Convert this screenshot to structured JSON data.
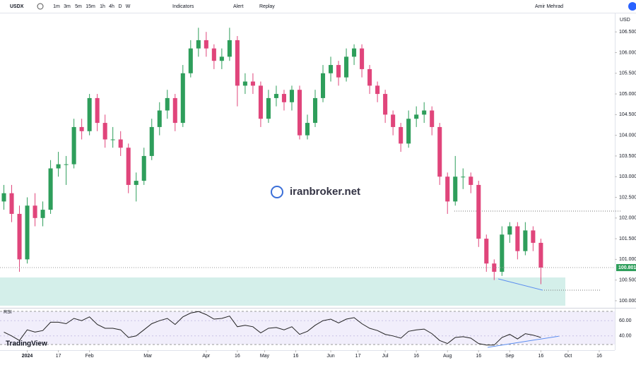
{
  "toolbar": {
    "symbol": "USDX",
    "intervals": [
      "1m",
      "3m",
      "5m",
      "15m",
      "1h",
      "4h",
      "D",
      "W"
    ],
    "indicators": "Indicators",
    "alert": "Alert",
    "replay": "Replay",
    "user": "Amir Mehrad"
  },
  "watermark": "iranbroker.net",
  "brand": "TradingView",
  "chart_data": [
    {
      "type": "candlestick",
      "currency": "USD",
      "up_color": "#2e9e5b",
      "down_color": "#e0457b",
      "last_price": 100.801,
      "xlim": [
        -0.5,
        78.5
      ],
      "xticks": [
        {
          "value": 3,
          "label": "2024"
        },
        {
          "value": 7,
          "label": "17"
        },
        {
          "value": 11,
          "label": "Feb"
        },
        {
          "value": 18.5,
          "label": "Mar"
        },
        {
          "value": 26,
          "label": "Apr"
        },
        {
          "value": 30,
          "label": "16"
        },
        {
          "value": 33.5,
          "label": "May"
        },
        {
          "value": 37.5,
          "label": "16"
        },
        {
          "value": 42,
          "label": "Jun"
        },
        {
          "value": 45.5,
          "label": "17"
        },
        {
          "value": 49,
          "label": "Jul"
        },
        {
          "value": 53,
          "label": "16"
        },
        {
          "value": 57,
          "label": "Aug"
        },
        {
          "value": 61,
          "label": "16"
        },
        {
          "value": 65,
          "label": "Sep"
        },
        {
          "value": 69,
          "label": "16"
        },
        {
          "value": 72.5,
          "label": "Oct"
        },
        {
          "value": 76.5,
          "label": "16"
        }
      ],
      "ylim": [
        99.88,
        106.93
      ],
      "yticks": [
        {
          "value": 100,
          "label": "100.000"
        },
        {
          "value": 100.5,
          "label": "100.500"
        },
        {
          "value": 101,
          "label": "101.000"
        },
        {
          "value": 101.5,
          "label": "101.500"
        },
        {
          "value": 102,
          "label": "102.000"
        },
        {
          "value": 102.5,
          "label": "102.500"
        },
        {
          "value": 103,
          "label": "103.000"
        },
        {
          "value": 103.5,
          "label": "103.500"
        },
        {
          "value": 104,
          "label": "104.000"
        },
        {
          "value": 104.5,
          "label": "104.500"
        },
        {
          "value": 105,
          "label": "105.000"
        },
        {
          "value": 105.5,
          "label": "105.500"
        },
        {
          "value": 106,
          "label": "106.000"
        },
        {
          "value": 106.5,
          "label": "106.500"
        }
      ],
      "ohlc": [
        [
          102.4,
          102.8,
          102.2,
          102.6
        ],
        [
          102.6,
          102.8,
          101.9,
          102.1
        ],
        [
          102.1,
          102.3,
          100.7,
          101.0
        ],
        [
          101.0,
          102.5,
          100.9,
          102.3
        ],
        [
          102.3,
          102.6,
          101.8,
          102.0
        ],
        [
          102.0,
          102.4,
          101.8,
          102.2
        ],
        [
          102.2,
          103.4,
          102.1,
          103.2
        ],
        [
          103.2,
          103.6,
          103.0,
          103.3
        ],
        [
          103.3,
          103.5,
          102.8,
          103.3
        ],
        [
          103.3,
          104.4,
          103.2,
          104.2
        ],
        [
          104.2,
          104.4,
          103.9,
          104.1
        ],
        [
          104.1,
          105.0,
          104.0,
          104.9
        ],
        [
          104.9,
          105.0,
          104.1,
          104.3
        ],
        [
          104.3,
          104.5,
          103.7,
          103.9
        ],
        [
          103.9,
          104.2,
          103.7,
          103.9
        ],
        [
          103.9,
          104.1,
          103.5,
          103.7
        ],
        [
          103.7,
          103.8,
          102.6,
          102.8
        ],
        [
          102.8,
          103.1,
          102.4,
          102.9
        ],
        [
          102.9,
          103.7,
          102.8,
          103.5
        ],
        [
          103.5,
          104.4,
          103.4,
          104.2
        ],
        [
          104.2,
          104.8,
          104.0,
          104.6
        ],
        [
          104.6,
          105.1,
          104.4,
          104.9
        ],
        [
          104.9,
          105.0,
          104.1,
          104.3
        ],
        [
          104.3,
          105.7,
          104.2,
          105.5
        ],
        [
          105.5,
          106.3,
          105.4,
          106.1
        ],
        [
          106.1,
          106.6,
          105.9,
          106.3
        ],
        [
          106.3,
          106.5,
          105.9,
          106.1
        ],
        [
          106.1,
          106.2,
          105.6,
          105.8
        ],
        [
          105.8,
          106.1,
          105.6,
          105.9
        ],
        [
          105.9,
          106.6,
          105.8,
          106.3
        ],
        [
          106.3,
          106.4,
          104.7,
          105.2
        ],
        [
          105.2,
          105.5,
          105.0,
          105.3
        ],
        [
          105.3,
          105.5,
          105.0,
          105.2
        ],
        [
          105.2,
          105.3,
          104.2,
          104.4
        ],
        [
          104.4,
          105.1,
          104.3,
          104.9
        ],
        [
          104.9,
          105.2,
          104.7,
          105.0
        ],
        [
          105.0,
          105.1,
          104.6,
          104.8
        ],
        [
          104.8,
          105.2,
          104.6,
          105.1
        ],
        [
          105.1,
          105.2,
          103.9,
          104.0
        ],
        [
          104.0,
          104.5,
          103.9,
          104.3
        ],
        [
          104.3,
          105.1,
          104.2,
          104.9
        ],
        [
          104.9,
          105.7,
          104.8,
          105.5
        ],
        [
          105.5,
          105.9,
          105.3,
          105.7
        ],
        [
          105.7,
          105.8,
          105.2,
          105.4
        ],
        [
          105.4,
          106.1,
          105.3,
          105.9
        ],
        [
          105.9,
          106.2,
          105.7,
          106.1
        ],
        [
          106.1,
          106.2,
          105.4,
          105.6
        ],
        [
          105.6,
          105.7,
          105.0,
          105.2
        ],
        [
          105.2,
          105.3,
          104.8,
          105.0
        ],
        [
          105.0,
          105.1,
          104.3,
          104.5
        ],
        [
          104.5,
          104.6,
          104.0,
          104.2
        ],
        [
          104.2,
          104.3,
          103.6,
          103.8
        ],
        [
          103.8,
          104.6,
          103.7,
          104.4
        ],
        [
          104.4,
          104.7,
          104.2,
          104.5
        ],
        [
          104.5,
          104.8,
          104.3,
          104.6
        ],
        [
          104.6,
          104.7,
          104.0,
          104.2
        ],
        [
          104.2,
          104.3,
          102.8,
          103.0
        ],
        [
          103.0,
          103.1,
          102.1,
          102.4
        ],
        [
          102.4,
          103.5,
          102.3,
          103.0
        ],
        [
          103.0,
          103.2,
          102.7,
          103.0
        ],
        [
          103.0,
          103.1,
          102.6,
          102.8
        ],
        [
          102.8,
          102.9,
          101.3,
          101.5
        ],
        [
          101.5,
          101.6,
          100.7,
          100.9
        ],
        [
          100.9,
          101.0,
          100.5,
          100.7
        ],
        [
          100.7,
          101.8,
          100.6,
          101.6
        ],
        [
          101.6,
          101.9,
          101.4,
          101.8
        ],
        [
          101.8,
          101.9,
          101.0,
          101.2
        ],
        [
          101.2,
          101.9,
          101.1,
          101.7
        ],
        [
          101.7,
          101.8,
          101.2,
          101.4
        ],
        [
          101.4,
          101.5,
          100.4,
          100.8
        ]
      ]
    },
    {
      "type": "line",
      "title": "RSI",
      "color": "#222222",
      "xlim": [
        -0.5,
        78.5
      ],
      "ylim": [
        25,
        75
      ],
      "yticks": [
        {
          "value": 60,
          "label": "60.00"
        },
        {
          "value": 40,
          "label": "40.00"
        }
      ],
      "values": [
        45,
        40,
        34,
        48,
        45,
        47,
        58,
        58,
        56,
        63,
        60,
        65,
        55,
        50,
        50,
        48,
        38,
        40,
        48,
        56,
        60,
        63,
        55,
        65,
        70,
        72,
        68,
        62,
        63,
        66,
        52,
        54,
        52,
        44,
        50,
        51,
        48,
        52,
        42,
        46,
        54,
        60,
        62,
        57,
        62,
        64,
        56,
        50,
        47,
        42,
        40,
        37,
        46,
        48,
        49,
        43,
        34,
        30,
        38,
        39,
        37,
        30,
        28,
        28,
        38,
        42,
        36,
        43,
        41,
        38
      ]
    }
  ]
}
